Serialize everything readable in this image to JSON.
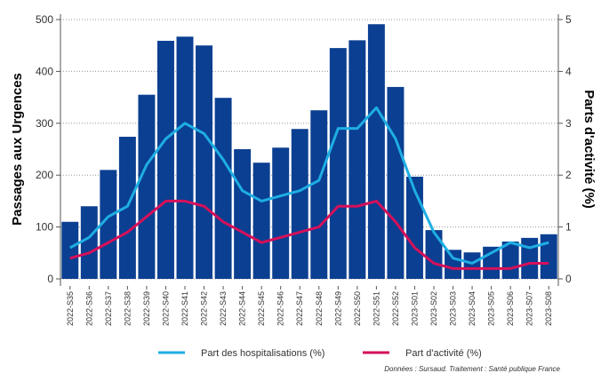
{
  "chart_data": {
    "type": "bar",
    "y_label": "Passages aux Urgences",
    "y2_label": "Parts d'activité (%)",
    "source": "Données : Sursaud. Traitement : Santé publique France",
    "categories": [
      "2022-S35",
      "2022-S36",
      "2022-S37",
      "2022-S38",
      "2022-S39",
      "2022-S40",
      "2022-S41",
      "2022-S42",
      "2022-S43",
      "2022-S44",
      "2022-S45",
      "2022-S46",
      "2022-S47",
      "2022-S48",
      "2022-S49",
      "2022-S50",
      "2022-S51",
      "2022-S52",
      "2023-S01",
      "2023-S02",
      "2023-S03",
      "2023-S04",
      "2023-S05",
      "2023-S06",
      "2023-S07",
      "2023-S08"
    ],
    "values": [
      110,
      140,
      210,
      274,
      355,
      459,
      467,
      450,
      349,
      250,
      224,
      253,
      289,
      325,
      445,
      460,
      491,
      370,
      197,
      94,
      56,
      51,
      62,
      72,
      79,
      86
    ],
    "color": "#0b3f91",
    "series": [
      {
        "name": "Part des hospitalisations (%)",
        "color": "#1eaee3",
        "axis": "y2",
        "values": [
          0.6,
          0.8,
          1.2,
          1.4,
          2.2,
          2.7,
          3.0,
          2.8,
          2.3,
          1.7,
          1.5,
          1.6,
          1.7,
          1.9,
          2.9,
          2.9,
          3.3,
          2.7,
          1.7,
          0.9,
          0.4,
          0.3,
          0.5,
          0.7,
          0.6,
          0.7
        ]
      },
      {
        "name": "Part d'activité (%)",
        "color": "#d6105a",
        "axis": "y2",
        "values": [
          0.4,
          0.5,
          0.7,
          0.9,
          1.2,
          1.5,
          1.5,
          1.4,
          1.1,
          0.9,
          0.7,
          0.8,
          0.9,
          1.0,
          1.4,
          1.4,
          1.5,
          1.1,
          0.6,
          0.3,
          0.2,
          0.2,
          0.2,
          0.2,
          0.3,
          0.3
        ]
      }
    ],
    "ylim": [
      0,
      500
    ],
    "yticks": [
      0,
      100,
      200,
      300,
      400,
      500
    ],
    "y2lim": [
      0,
      5
    ],
    "y2ticks": [
      0,
      1,
      2,
      3,
      4,
      5
    ],
    "grid": true
  }
}
